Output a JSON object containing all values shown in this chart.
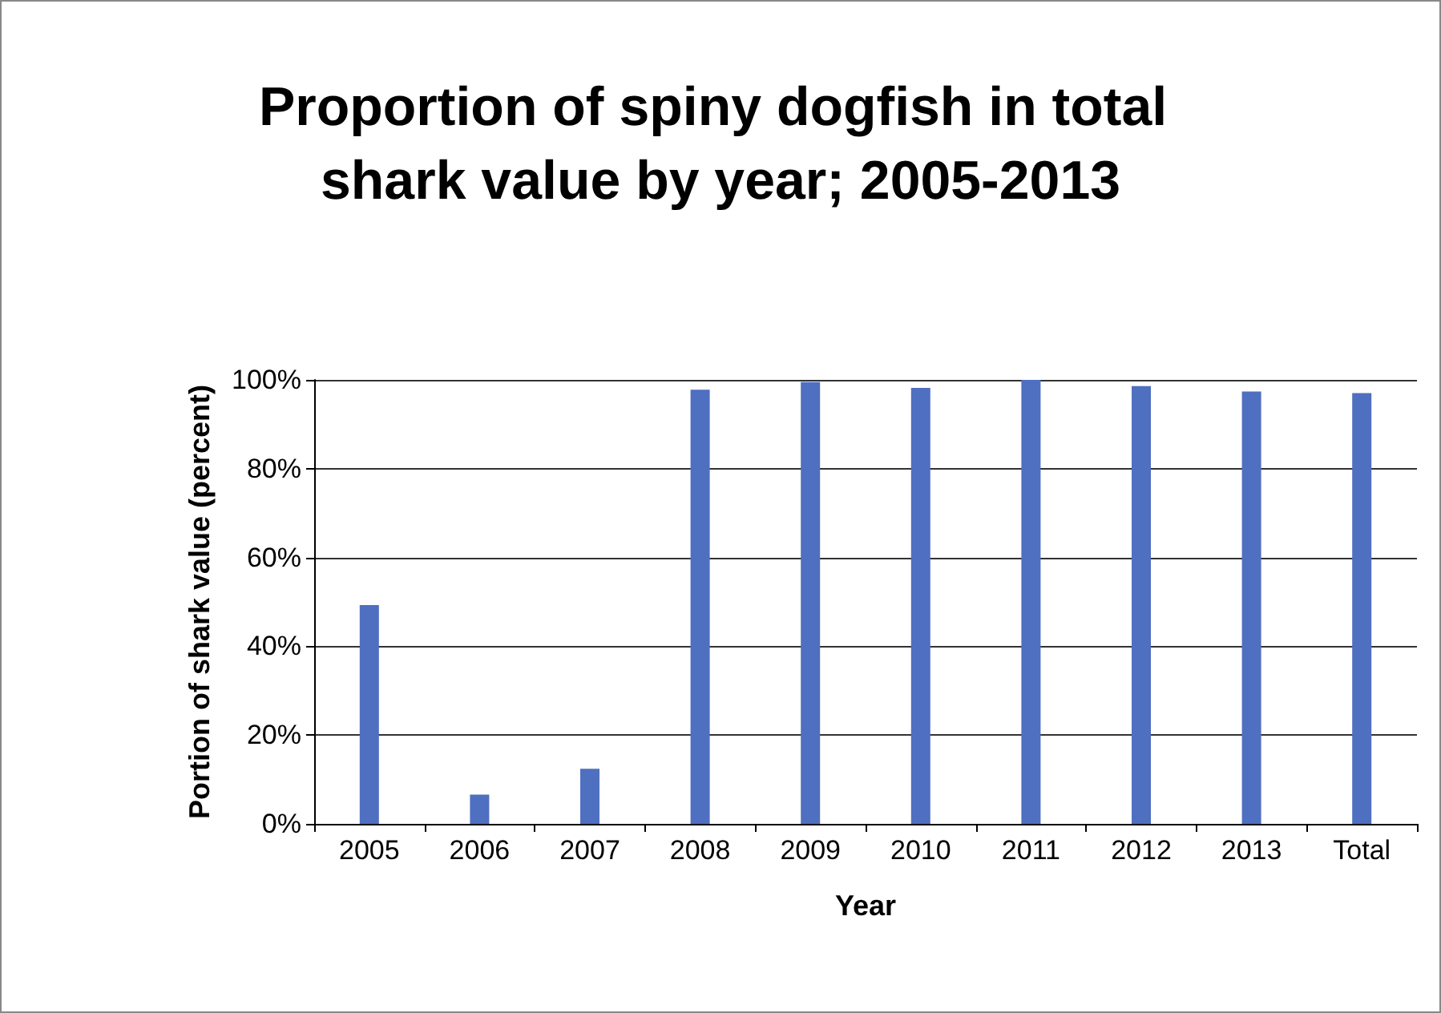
{
  "chart_data": {
    "type": "bar",
    "title": "Proportion of spiny dogfish in total shark value by year; 2005-2013",
    "xlabel": "Year",
    "ylabel": "Portion of shark value (percent)",
    "categories": [
      "2005",
      "2006",
      "2007",
      "2008",
      "2009",
      "2010",
      "2011",
      "2012",
      "2013",
      "Total"
    ],
    "values": [
      49.3,
      6.6,
      12.4,
      97.8,
      99.5,
      98.2,
      100,
      98.6,
      97.4,
      97
    ],
    "color": "#4f6fc0",
    "ylim": [
      0,
      100
    ],
    "yticks": [
      {
        "value": 0,
        "label": "0%"
      },
      {
        "value": 20,
        "label": "20%"
      },
      {
        "value": 40,
        "label": "40%"
      },
      {
        "value": 60,
        "label": "60%"
      },
      {
        "value": 80,
        "label": "80%"
      },
      {
        "value": 100,
        "label": "100%"
      }
    ],
    "grid": "y"
  }
}
